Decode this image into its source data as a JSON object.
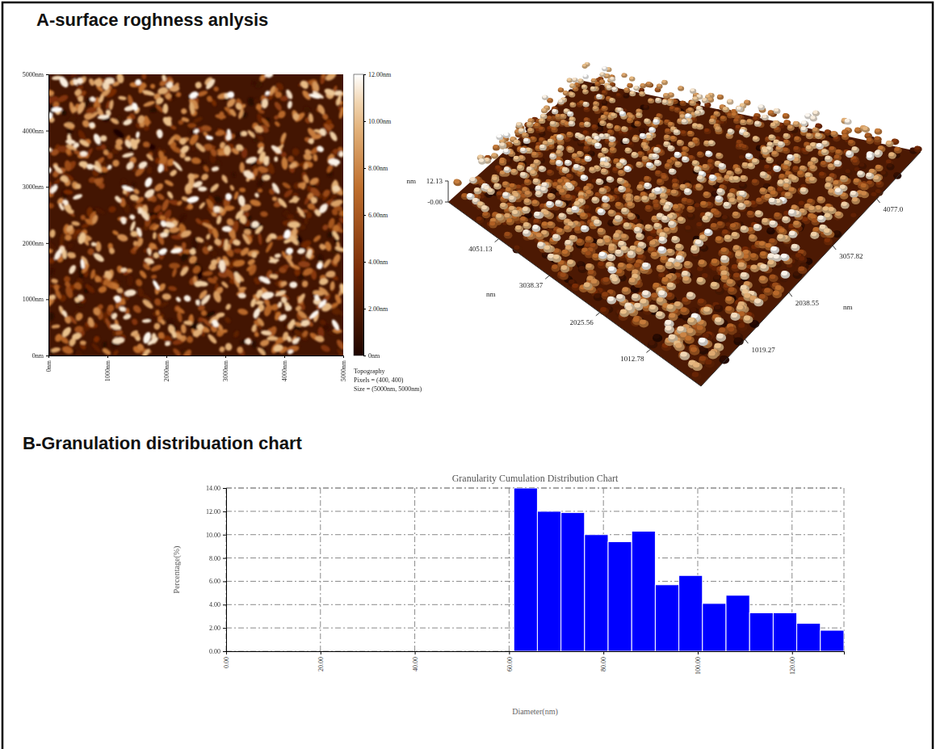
{
  "headings": [
    "A-surface roghness anlysis",
    "B-Granulation distribuation chart"
  ],
  "chart_data": [
    {
      "type": "image",
      "xlim": [
        0,
        5000
      ],
      "xticks": [
        {
          "value": 0,
          "label": "0nm"
        },
        {
          "value": 1000,
          "label": "1000nm"
        },
        {
          "value": 2000,
          "label": "2000nm"
        },
        {
          "value": 3000,
          "label": "3000nm"
        },
        {
          "value": 4000,
          "label": "4000nm"
        },
        {
          "value": 5000,
          "label": "5000nm"
        }
      ],
      "ylim": [
        0,
        5000
      ],
      "yticks": [
        {
          "value": 0,
          "label": "0nm"
        },
        {
          "value": 1000,
          "label": "1000nm"
        },
        {
          "value": 2000,
          "label": "2000nm"
        },
        {
          "value": 3000,
          "label": "3000nm"
        },
        {
          "value": 4000,
          "label": "4000nm"
        },
        {
          "value": 5000,
          "label": "5000nm"
        }
      ],
      "colorbar": {
        "range": [
          0,
          12
        ],
        "ticks": [
          {
            "value": 0,
            "label": "0nm"
          },
          {
            "value": 2,
            "label": "2.00nm"
          },
          {
            "value": 4,
            "label": "4.00nm"
          },
          {
            "value": 6,
            "label": "6.00nm"
          },
          {
            "value": 8,
            "label": "8.00nm"
          },
          {
            "value": 10,
            "label": "10.00nm"
          },
          {
            "value": 12,
            "label": "12.00nm"
          }
        ]
      },
      "annotations": [
        "Topography",
        "Pixels = (400, 400)",
        "Size = (5000nm, 5000nm)"
      ]
    },
    {
      "type": "surface",
      "xlabel": "nm",
      "ylabel": "nm",
      "zlabel": "nm",
      "xlim": [
        0,
        5096.35
      ],
      "xticks": [
        1019.27,
        2038.55,
        3057.82,
        {
          "value": 4077,
          "label": "4077.0"
        }
      ],
      "ylim": [
        0,
        5063.9
      ],
      "yticks": [
        1012.78,
        2025.56,
        3038.37,
        4051.13
      ],
      "zlim": [
        0,
        12.13
      ],
      "zticks": [
        {
          "value": 0,
          "label": "-0.00"
        },
        12.13
      ]
    },
    {
      "type": "bar",
      "title": "Granularity Cumulation Distribution Chart",
      "xlabel": "Diameter(nm)",
      "ylabel": "Percentage(%)",
      "bins": [
        61,
        66,
        71,
        76,
        81,
        86,
        91,
        96,
        101,
        106,
        111,
        116,
        121,
        126,
        131
      ],
      "values": [
        14.0,
        12.0,
        11.9,
        10.0,
        9.4,
        10.3,
        5.7,
        6.5,
        4.1,
        4.8,
        3.3,
        3.3,
        2.4,
        1.8
      ],
      "color": "#0000ff",
      "xlim": [
        0,
        131
      ],
      "xticks": [
        {
          "value": 0,
          "label": "0.00"
        },
        {
          "value": 20,
          "label": "20.00"
        },
        {
          "value": 40,
          "label": "40.00"
        },
        {
          "value": 60,
          "label": "60.00"
        },
        {
          "value": 80,
          "label": "80.00"
        },
        {
          "value": 100,
          "label": "100.00"
        },
        {
          "value": 120,
          "label": "120.00"
        }
      ],
      "ylim": [
        0,
        14
      ],
      "yticks": [
        {
          "value": 0,
          "label": "0.00"
        },
        {
          "value": 2,
          "label": "2.00"
        },
        {
          "value": 4,
          "label": "4.00"
        },
        {
          "value": 6,
          "label": "6.00"
        },
        {
          "value": 8,
          "label": "8.00"
        },
        {
          "value": 10,
          "label": "10.00"
        },
        {
          "value": 12,
          "label": "12.00"
        },
        {
          "value": 14,
          "label": "14.00"
        }
      ],
      "grid": true
    }
  ]
}
